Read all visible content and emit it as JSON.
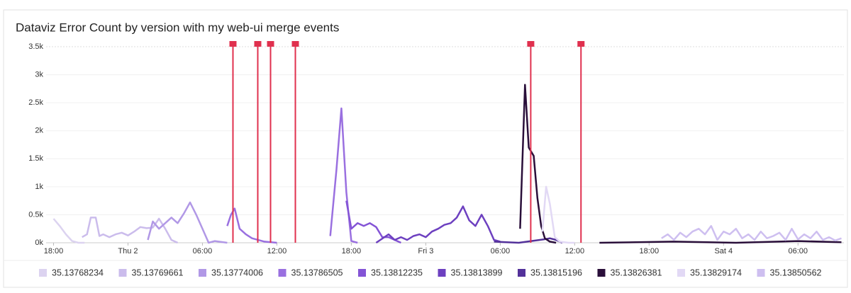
{
  "chart_data": {
    "type": "line",
    "title": "Dataviz Error Count by version with my web-ui merge events",
    "xlim": [
      -0.6,
      63.7
    ],
    "xticks": [
      {
        "value": 0,
        "label": "18:00"
      },
      {
        "value": 6,
        "label": "Thu 2"
      },
      {
        "value": 12,
        "label": "06:00"
      },
      {
        "value": 18,
        "label": "12:00"
      },
      {
        "value": 24,
        "label": "18:00"
      },
      {
        "value": 30,
        "label": "Fri 3"
      },
      {
        "value": 36,
        "label": "06:00"
      },
      {
        "value": 42,
        "label": "12:00"
      },
      {
        "value": 48,
        "label": "18:00"
      },
      {
        "value": 54,
        "label": "Sat 4"
      },
      {
        "value": 60,
        "label": "06:00"
      }
    ],
    "ylim": [
      0,
      3500
    ],
    "yticks": [
      {
        "value": 0,
        "label": "0k"
      },
      {
        "value": 500,
        "label": "0.5k"
      },
      {
        "value": 1000,
        "label": "1k"
      },
      {
        "value": 1500,
        "label": "1.5k"
      },
      {
        "value": 2000,
        "label": "2k"
      },
      {
        "value": 2500,
        "label": "2.5k"
      },
      {
        "value": 3000,
        "label": "3k"
      },
      {
        "value": 3500,
        "label": "3.5k"
      }
    ],
    "grid": true,
    "event_color": "#e0304e",
    "events": [
      14.46,
      16.46,
      17.49,
      19.49,
      38.46,
      42.51
    ],
    "series": [
      {
        "name": "35.13768234",
        "color": "#dcd3f0",
        "x": [
          0,
          0.5,
          1,
          1.5,
          2,
          2.5
        ],
        "values": [
          430,
          300,
          150,
          30,
          0,
          0
        ]
      },
      {
        "name": "35.13769661",
        "color": "#cbbcec",
        "x": [
          2.3,
          2.7,
          3,
          3.4,
          3.7,
          4,
          4.5,
          5,
          5.5,
          6,
          6.5,
          7,
          7.5,
          8,
          8.5,
          9,
          9.5,
          10
        ],
        "values": [
          100,
          150,
          450,
          450,
          120,
          150,
          100,
          150,
          180,
          130,
          200,
          280,
          260,
          270,
          430,
          250,
          50,
          0
        ]
      },
      {
        "name": "35.13774006",
        "color": "#b198e6",
        "x": [
          7.6,
          8,
          8.5,
          9,
          9.5,
          10,
          10.5,
          11,
          11.5,
          12,
          12.5,
          13,
          14
        ],
        "values": [
          50,
          380,
          250,
          350,
          450,
          350,
          520,
          720,
          500,
          250,
          0,
          30,
          0
        ]
      },
      {
        "name": "35.13786505",
        "color": "#9a70e0",
        "x": [
          14,
          14.3,
          14.6,
          15,
          15.5,
          16,
          17,
          18,
          null,
          22.3,
          22.8,
          23.2,
          23.6,
          24,
          24.5
        ],
        "values": [
          300,
          500,
          610,
          250,
          150,
          80,
          20,
          0,
          null,
          120,
          1300,
          2400,
          900,
          30,
          0
        ]
      },
      {
        "name": "35.13812235",
        "color": "#8454d6",
        "x": [
          23.6,
          24,
          24.5,
          25,
          25.5,
          26,
          26.5,
          27,
          27.5,
          28
        ],
        "values": [
          750,
          250,
          350,
          300,
          350,
          280,
          100,
          100,
          50,
          0
        ]
      },
      {
        "name": "35.13813899",
        "color": "#6d40c0",
        "x": [
          26,
          27,
          27.5,
          28,
          28.5,
          29,
          29.5,
          30,
          30.5,
          31,
          31.5,
          32,
          32.5,
          33,
          33.5,
          34,
          34.5,
          35,
          35.5,
          36
        ],
        "values": [
          0,
          150,
          50,
          100,
          50,
          120,
          150,
          100,
          200,
          250,
          320,
          350,
          450,
          650,
          400,
          300,
          500,
          300,
          50,
          20
        ]
      },
      {
        "name": "35.13815196",
        "color": "#53319a",
        "x": [
          35.5,
          36.5,
          37.5,
          38.5,
          39.5,
          40,
          40.5,
          41
        ],
        "values": [
          20,
          10,
          0,
          30,
          60,
          80,
          50,
          0
        ]
      },
      {
        "name": "35.13826381",
        "color": "#2a0f3a",
        "x": [
          37.6,
          38,
          38.3,
          38.7,
          39,
          39.3,
          39.6,
          40,
          40.5,
          null,
          44,
          50,
          55,
          60,
          63.5
        ],
        "values": [
          250,
          2820,
          1700,
          1550,
          800,
          300,
          80,
          20,
          0,
          null,
          0,
          20,
          0,
          30,
          10
        ]
      },
      {
        "name": "35.13829174",
        "color": "#e2d9f5",
        "x": [
          39.4,
          39.7,
          40,
          40.4,
          40.8,
          41.5,
          42
        ],
        "values": [
          200,
          1000,
          700,
          100,
          20,
          0,
          0
        ]
      },
      {
        "name": "35.13850562",
        "color": "#cebff0",
        "x": [
          49,
          49.5,
          50,
          50.5,
          51,
          51.5,
          52,
          52.5,
          53,
          53.5,
          54,
          54.5,
          55,
          55.5,
          56,
          56.5,
          57,
          57.5,
          58,
          58.5,
          59,
          59.5,
          60,
          60.5,
          61,
          61.5,
          62,
          62.5,
          63,
          63.5
        ],
        "values": [
          80,
          150,
          50,
          180,
          100,
          200,
          250,
          150,
          300,
          50,
          200,
          150,
          250,
          80,
          150,
          50,
          200,
          80,
          120,
          180,
          50,
          250,
          60,
          150,
          80,
          200,
          50,
          100,
          40,
          80
        ]
      }
    ]
  }
}
